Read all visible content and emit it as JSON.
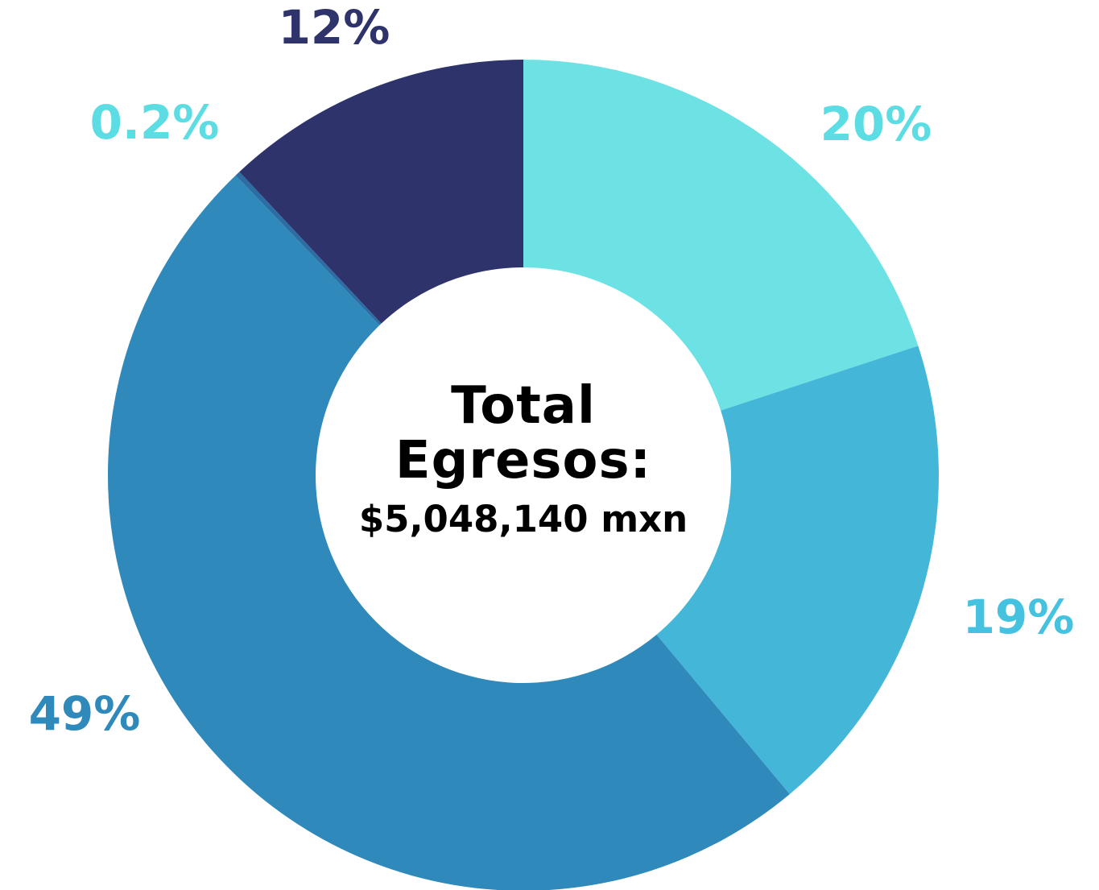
{
  "chart_data": {
    "type": "pie",
    "variant": "donut",
    "center_text": {
      "title_line1": "Total",
      "title_line2": "Egresos:",
      "value": "$5,048,140 mxn"
    },
    "slices": [
      {
        "value": 20,
        "label": "20%",
        "color": "#6de2e5",
        "label_color": "#5cdde3"
      },
      {
        "value": 19,
        "label": "19%",
        "color": "#44b7d8",
        "label_color": "#44c2e0"
      },
      {
        "value": 49,
        "label": "49%",
        "color": "#2f89ba",
        "label_color": "#2f89ba"
      },
      {
        "value": 0.2,
        "label": "0.2%",
        "color": "#2c6ea4",
        "label_color": "#5cdde3"
      },
      {
        "value": 12,
        "label": "12%",
        "color": "#2e336c",
        "label_color": "#2e336c"
      }
    ],
    "start_angle_deg": 0,
    "direction": "clockwise"
  }
}
